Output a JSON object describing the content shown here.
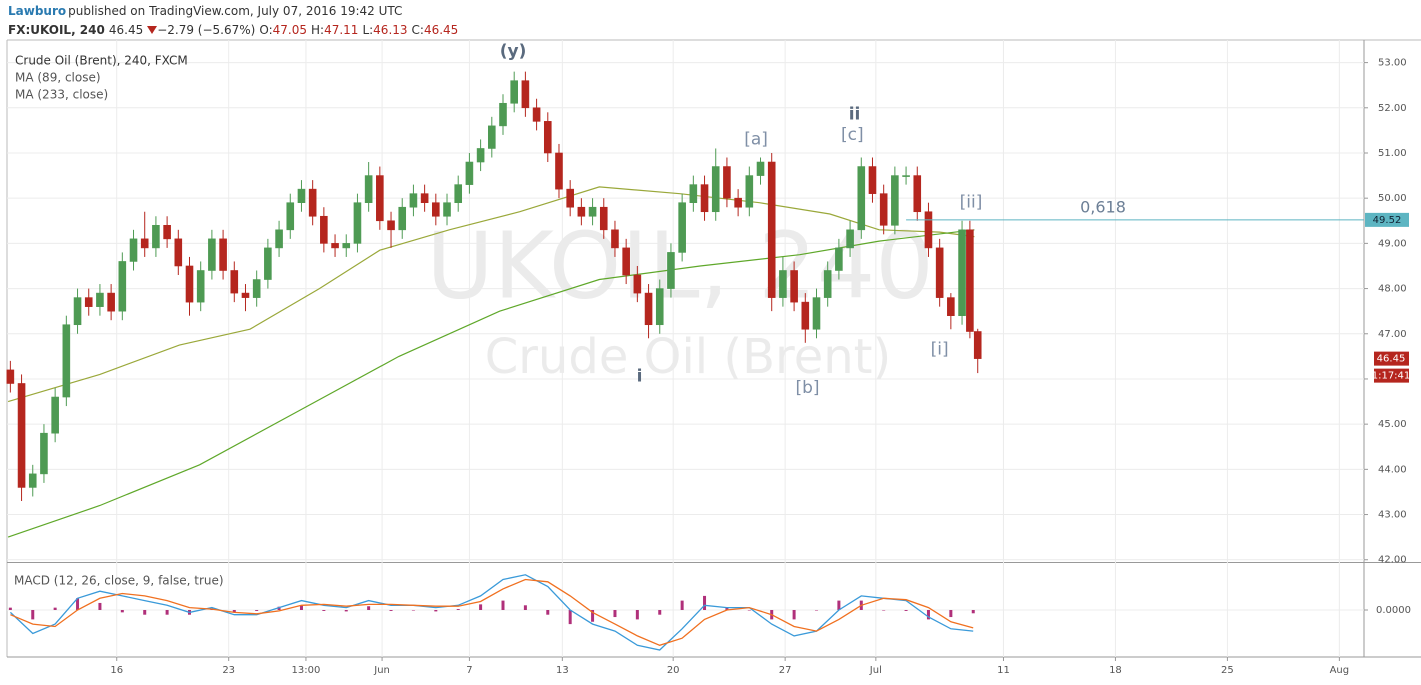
{
  "header": {
    "author": "Lawburo",
    "published": "published on TradingView.com, July 07, 2016 19:42 UTC",
    "symbol": "FX:UKOIL, 240",
    "change": "−2.79 (−5.67%)",
    "ohlc_labels": [
      "O:",
      "H:",
      "L:",
      "C:"
    ]
  },
  "chart_data": [
    {
      "type": "candlestick",
      "title": "Crude Oil (Brent), 240, FXCM",
      "watermark": [
        "UKOIL, 240",
        "Crude Oil (Brent)"
      ],
      "x": [
        -4.75,
        -4.25,
        -3.75,
        -3.25,
        -2.75,
        -2.25,
        -1.75,
        -1.25,
        -0.75,
        -0.25,
        0.25,
        0.75,
        1.25,
        1.75,
        2.25,
        2.75,
        3.25,
        3.75,
        4.25,
        4.75,
        5.25,
        5.75,
        6.25,
        6.75,
        7.25,
        7.75,
        8.25,
        8.75,
        9.25,
        9.75,
        10.25,
        10.75,
        11.25,
        11.75,
        12.25,
        12.75,
        13.25,
        13.75,
        14.25,
        14.75,
        15.25,
        15.75,
        16.25,
        16.75,
        17.25,
        17.75,
        18.25,
        18.75,
        19.25,
        19.75,
        20.25,
        20.75,
        21.25,
        21.75,
        22.25,
        22.75,
        23.25,
        23.75,
        24.25,
        24.75,
        25.25,
        25.75,
        26.25,
        26.75,
        27.25,
        27.75,
        28.25,
        28.75,
        29.25,
        29.75,
        30.25,
        30.75,
        31.25,
        31.75,
        32.25,
        32.75,
        33.25,
        33.75,
        34.25,
        34.75,
        35.25,
        35.75,
        36.25,
        36.75,
        37.25,
        37.75,
        38.1,
        38.45
      ],
      "open": [
        46.2,
        45.9,
        43.6,
        43.9,
        44.8,
        45.6,
        47.2,
        47.8,
        47.6,
        47.9,
        47.5,
        48.6,
        49.1,
        48.9,
        49.4,
        49.1,
        48.5,
        47.7,
        48.4,
        49.1,
        48.4,
        47.9,
        47.8,
        48.2,
        48.9,
        49.3,
        49.9,
        50.2,
        49.6,
        49.0,
        48.9,
        49.0,
        49.9,
        50.5,
        49.5,
        49.3,
        49.8,
        50.1,
        49.9,
        49.6,
        49.9,
        50.3,
        50.8,
        51.1,
        51.6,
        52.1,
        52.6,
        52.0,
        51.7,
        51.0,
        50.2,
        49.8,
        49.6,
        49.8,
        49.3,
        48.9,
        48.3,
        47.9,
        47.2,
        48.0,
        48.8,
        49.9,
        50.3,
        49.7,
        50.7,
        50.0,
        49.8,
        50.5,
        50.8,
        47.8,
        48.4,
        47.7,
        47.1,
        47.8,
        48.4,
        48.9,
        49.3,
        50.7,
        50.1,
        49.4,
        50.5,
        50.5,
        49.7,
        48.9,
        47.8,
        47.4,
        49.3,
        47.05
      ],
      "high": [
        46.4,
        46.1,
        44.1,
        45.0,
        45.8,
        47.4,
        48.0,
        48.0,
        48.1,
        48.1,
        48.8,
        49.3,
        49.7,
        49.6,
        49.6,
        49.3,
        48.7,
        48.6,
        49.3,
        49.3,
        48.6,
        48.1,
        48.4,
        49.1,
        49.5,
        50.1,
        50.4,
        50.4,
        49.8,
        49.2,
        49.2,
        50.1,
        50.8,
        50.7,
        49.7,
        50.0,
        50.3,
        50.3,
        50.1,
        50.1,
        50.5,
        51.0,
        51.3,
        51.8,
        52.3,
        52.8,
        52.8,
        52.2,
        51.9,
        51.2,
        50.4,
        50.0,
        50.0,
        50.0,
        49.5,
        49.1,
        48.5,
        48.1,
        48.2,
        49.0,
        50.1,
        50.5,
        50.5,
        51.1,
        50.9,
        50.2,
        50.7,
        50.9,
        51.0,
        48.7,
        48.6,
        47.9,
        48.0,
        48.6,
        49.1,
        49.5,
        50.9,
        50.9,
        50.3,
        50.7,
        50.7,
        50.7,
        49.9,
        49.1,
        47.9,
        49.5,
        49.5,
        47.11
      ],
      "low": [
        45.7,
        43.3,
        43.4,
        43.7,
        44.6,
        45.4,
        47.0,
        47.4,
        47.4,
        47.3,
        47.3,
        48.4,
        48.7,
        48.7,
        48.9,
        48.3,
        47.4,
        47.5,
        48.2,
        48.2,
        47.7,
        47.5,
        47.6,
        48.0,
        48.7,
        49.1,
        49.7,
        49.4,
        48.8,
        48.7,
        48.7,
        48.8,
        49.7,
        49.3,
        48.9,
        49.1,
        49.6,
        49.7,
        49.4,
        49.4,
        49.7,
        50.1,
        50.6,
        50.9,
        51.4,
        51.9,
        51.8,
        51.5,
        50.8,
        50.0,
        49.6,
        49.4,
        49.4,
        49.1,
        48.7,
        48.1,
        47.7,
        46.9,
        47.0,
        47.8,
        48.6,
        49.7,
        49.5,
        49.5,
        49.8,
        49.6,
        49.6,
        50.3,
        47.5,
        47.6,
        47.5,
        46.8,
        46.9,
        47.6,
        48.2,
        48.7,
        49.1,
        49.9,
        49.2,
        49.2,
        50.3,
        49.5,
        48.7,
        47.6,
        47.1,
        47.2,
        46.9,
        46.13
      ],
      "close": [
        45.9,
        43.6,
        43.9,
        44.8,
        45.6,
        47.2,
        47.8,
        47.6,
        47.9,
        47.5,
        48.6,
        49.1,
        48.9,
        49.4,
        49.1,
        48.5,
        47.7,
        48.4,
        49.1,
        48.4,
        47.9,
        47.8,
        48.2,
        48.9,
        49.3,
        49.9,
        50.2,
        49.6,
        49.0,
        48.9,
        49.0,
        49.9,
        50.5,
        49.5,
        49.3,
        49.8,
        50.1,
        49.9,
        49.6,
        49.9,
        50.3,
        50.8,
        51.1,
        51.6,
        52.1,
        52.6,
        52.0,
        51.7,
        51.0,
        50.2,
        49.8,
        49.6,
        49.8,
        49.3,
        48.9,
        48.3,
        47.9,
        47.2,
        48.0,
        48.8,
        49.9,
        50.3,
        49.7,
        50.7,
        50.0,
        49.8,
        50.5,
        50.8,
        47.8,
        48.4,
        47.7,
        47.1,
        47.8,
        48.4,
        48.9,
        49.3,
        50.7,
        50.1,
        49.4,
        50.5,
        50.5,
        49.7,
        48.9,
        47.8,
        47.4,
        49.3,
        47.05,
        46.45
      ],
      "up_color": "#4e9a53",
      "down_color": "#b5261e",
      "overlays": [
        {
          "name": "MA (89, close)",
          "color": "#9aa83a",
          "x": [
            -4.85,
            -0.75,
            2.8,
            5.95,
            9.05,
            11.75,
            14.85,
            18,
            21.55,
            25.15,
            28.7,
            31.85,
            34.05,
            36.75,
            38.3
          ],
          "values": [
            45.5,
            46.1,
            46.75,
            47.1,
            48.0,
            48.85,
            49.3,
            49.7,
            50.25,
            50.1,
            49.9,
            49.65,
            49.3,
            49.25,
            49.15
          ]
        },
        {
          "name": "MA (233, close)",
          "color": "#5fa82a",
          "x": [
            -4.85,
            -0.75,
            3.7,
            8.15,
            12.6,
            17.1,
            21.55,
            26.05,
            30.5,
            34.05,
            38.3
          ],
          "values": [
            42.5,
            43.2,
            44.1,
            45.3,
            46.5,
            47.5,
            48.2,
            48.5,
            48.75,
            49.05,
            49.3
          ]
        }
      ],
      "annotations": [
        {
          "text": "(y)",
          "x": 17.7,
          "y": 53.25,
          "bold": true
        },
        {
          "text": "[a]",
          "x": 28.55,
          "y": 51.3,
          "bold": false
        },
        {
          "text": "ii",
          "x": 32.95,
          "y": 51.85,
          "bold": true
        },
        {
          "text": "[c]",
          "x": 32.85,
          "y": 51.4,
          "bold": false
        },
        {
          "text": "[ii]",
          "x": 38.15,
          "y": 49.9,
          "bold": false
        },
        {
          "text": "[i]",
          "x": 36.75,
          "y": 46.65,
          "bold": false
        },
        {
          "text": "i",
          "x": 23.35,
          "y": 46.05,
          "bold": true
        },
        {
          "text": "[b]",
          "x": 30.85,
          "y": 45.8,
          "bold": false
        }
      ],
      "fib_level": {
        "value": 49.52,
        "x_start": 35.25,
        "label": "0,618",
        "color": "#5db5c2"
      },
      "countdown": "1:17:41",
      "xlim": [
        -4.9,
        55.7
      ],
      "xticks": [
        {
          "value": 0,
          "label": "16"
        },
        {
          "value": 5,
          "label": "23"
        },
        {
          "value": 8.45,
          "label": "13:00"
        },
        {
          "value": 11.85,
          "label": "Jun"
        },
        {
          "value": 15.75,
          "label": "7"
        },
        {
          "value": 19.9,
          "label": "13"
        },
        {
          "value": 24.85,
          "label": "20"
        },
        {
          "value": 29.85,
          "label": "27"
        },
        {
          "value": 33.9,
          "label": "Jul"
        },
        {
          "value": 39.6,
          "label": "11"
        },
        {
          "value": 44.6,
          "label": "18"
        },
        {
          "value": 49.6,
          "label": "25"
        },
        {
          "value": 54.6,
          "label": "Aug"
        }
      ],
      "ylim": [
        41.95,
        53.5
      ],
      "yticks": [
        {
          "value": 42,
          "label": "42.00"
        },
        {
          "value": 43,
          "label": "43.00"
        },
        {
          "value": 44,
          "label": "44.00"
        },
        {
          "value": 45,
          "label": "45.00"
        },
        {
          "value": 46,
          "label": "46.00"
        },
        {
          "value": 47,
          "label": "47.00"
        },
        {
          "value": 48,
          "label": "48.00"
        },
        {
          "value": 49,
          "label": "49.00"
        },
        {
          "value": 50,
          "label": "50.00"
        },
        {
          "value": 51,
          "label": "51.00"
        },
        {
          "value": 52,
          "label": "52.00"
        },
        {
          "value": 53,
          "label": "53.00"
        }
      ],
      "grid": true
    },
    {
      "type": "macd",
      "title": "MACD (12, 26, close, 9, false, true)",
      "x": [
        -4.75,
        -3.75,
        -2.75,
        -1.75,
        -0.75,
        0.25,
        1.25,
        2.25,
        3.25,
        4.25,
        5.25,
        6.25,
        7.25,
        8.25,
        9.25,
        10.25,
        11.25,
        12.25,
        13.25,
        14.25,
        15.25,
        16.25,
        17.25,
        18.25,
        19.25,
        20.25,
        21.25,
        22.25,
        23.25,
        24.25,
        25.25,
        26.25,
        27.25,
        28.25,
        29.25,
        30.25,
        31.25,
        32.25,
        33.25,
        34.25,
        35.25,
        36.25,
        37.25,
        38.25
      ],
      "macd": [
        -0.05,
        -0.5,
        -0.3,
        0.25,
        0.4,
        0.3,
        0.2,
        0.1,
        -0.05,
        0.05,
        -0.1,
        -0.1,
        0.05,
        0.2,
        0.1,
        0.05,
        0.2,
        0.1,
        0.1,
        0.05,
        0.1,
        0.3,
        0.65,
        0.75,
        0.5,
        0.0,
        -0.3,
        -0.45,
        -0.75,
        -0.85,
        -0.4,
        0.1,
        0.05,
        0.05,
        -0.3,
        -0.55,
        -0.45,
        0.0,
        0.3,
        0.25,
        0.2,
        -0.15,
        -0.4,
        -0.45
      ],
      "signal": [
        -0.1,
        -0.3,
        -0.35,
        0.0,
        0.25,
        0.35,
        0.3,
        0.2,
        0.05,
        0.02,
        -0.05,
        -0.08,
        -0.02,
        0.1,
        0.12,
        0.08,
        0.12,
        0.12,
        0.1,
        0.08,
        0.08,
        0.18,
        0.45,
        0.65,
        0.6,
        0.3,
        -0.05,
        -0.3,
        -0.55,
        -0.75,
        -0.6,
        -0.2,
        0.0,
        0.05,
        -0.1,
        -0.35,
        -0.45,
        -0.2,
        0.1,
        0.25,
        0.22,
        0.05,
        -0.25,
        -0.38
      ],
      "histogram": [
        0.05,
        -0.2,
        0.05,
        0.25,
        0.15,
        -0.05,
        -0.1,
        -0.1,
        -0.1,
        0.03,
        -0.05,
        -0.02,
        0.07,
        0.1,
        -0.02,
        -0.03,
        0.08,
        -0.02,
        0,
        -0.03,
        0.02,
        0.12,
        0.2,
        0.1,
        -0.1,
        -0.3,
        -0.25,
        -0.15,
        -0.2,
        -0.1,
        0.2,
        0.3,
        0.05,
        0,
        -0.2,
        -0.2,
        0,
        0.2,
        0.2,
        0,
        -0.02,
        -0.2,
        -0.15,
        -0.07
      ],
      "macd_color": "#3a9ad9",
      "signal_color": "#f07020",
      "histogram_color": "#b0307a",
      "ylim": [
        -1,
        1
      ],
      "yticks": [
        {
          "value": 0,
          "label": "0.0000"
        }
      ]
    }
  ]
}
